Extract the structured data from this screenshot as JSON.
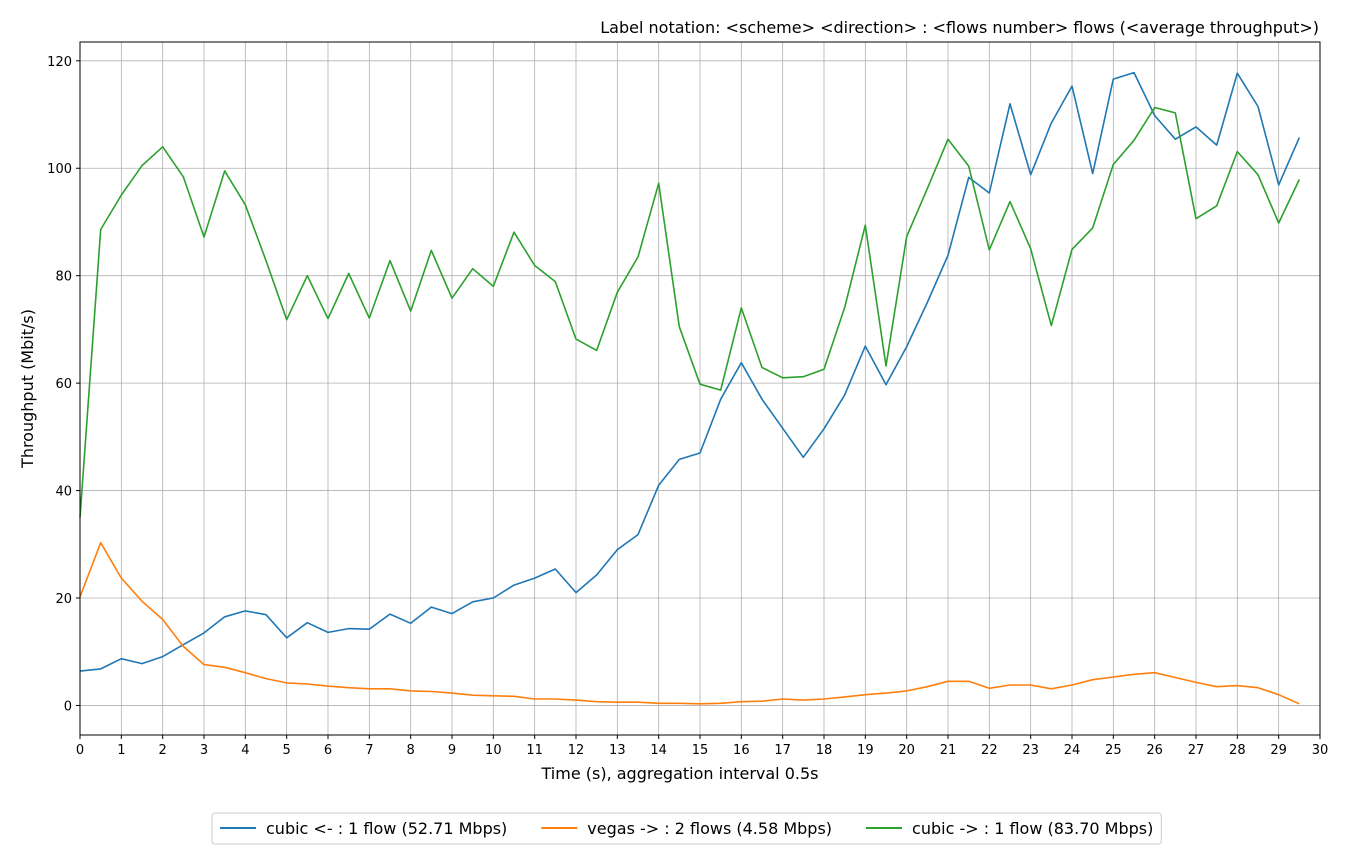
{
  "chart_data": {
    "type": "line",
    "title": "Label notation: <scheme> <direction> : <flows number> flows (<average throughput>)",
    "xlabel": "Time (s), aggregation interval 0.5s",
    "ylabel": "Throughput (Mbit/s)",
    "xlim": [
      0,
      30
    ],
    "ylim": [
      -5.5,
      123.5
    ],
    "xticks": [
      0,
      1,
      2,
      3,
      4,
      5,
      6,
      7,
      8,
      9,
      10,
      11,
      12,
      13,
      14,
      15,
      16,
      17,
      18,
      19,
      20,
      21,
      22,
      23,
      24,
      25,
      26,
      27,
      28,
      29,
      30
    ],
    "yticks": [
      0,
      20,
      40,
      60,
      80,
      100,
      120
    ],
    "grid": true,
    "legend_position": "bottom-center",
    "x": [
      0,
      0.5,
      1,
      1.5,
      2,
      2.5,
      3,
      3.5,
      4,
      4.5,
      5,
      5.5,
      6,
      6.5,
      7,
      7.5,
      8,
      8.5,
      9,
      9.5,
      10,
      10.5,
      11,
      11.5,
      12,
      12.5,
      13,
      13.5,
      14,
      14.5,
      15,
      15.5,
      16,
      16.5,
      17,
      17.5,
      18,
      18.5,
      19,
      19.5,
      20,
      20.5,
      21,
      21.5,
      22,
      22.5,
      23,
      23.5,
      24,
      24.5,
      25,
      25.5,
      26,
      26.5,
      27,
      27.5,
      28,
      28.5,
      29,
      29.5
    ],
    "series": [
      {
        "name": "cubic <- : 1 flow (52.71 Mbps)",
        "color": "#1f77b4",
        "values": [
          6.4,
          6.8,
          8.7,
          7.8,
          9.1,
          11.3,
          13.5,
          16.5,
          17.6,
          16.9,
          12.6,
          15.4,
          13.6,
          14.3,
          14.2,
          17.0,
          15.3,
          18.3,
          17.1,
          19.3,
          20.0,
          22.4,
          23.7,
          25.4,
          21.0,
          24.3,
          29.0,
          31.8,
          41.0,
          45.8,
          47.0,
          57.0,
          63.8,
          57.0,
          51.6,
          46.2,
          51.5,
          57.8,
          66.9,
          59.7,
          66.8,
          75.0,
          83.8,
          98.3,
          95.4,
          112.0,
          98.8,
          108.4,
          115.3,
          99.0,
          116.6,
          117.8,
          109.8,
          105.4,
          107.7,
          104.3,
          117.7,
          111.5,
          96.9,
          105.7
        ]
      },
      {
        "name": "vegas -> : 2 flows (4.58 Mbps)",
        "color": "#ff7f0e",
        "values": [
          20.2,
          30.3,
          23.7,
          19.4,
          16.0,
          11.0,
          7.6,
          7.1,
          6.1,
          5.0,
          4.2,
          4.0,
          3.6,
          3.3,
          3.1,
          3.1,
          2.7,
          2.6,
          2.3,
          1.9,
          1.8,
          1.7,
          1.2,
          1.2,
          1.0,
          0.7,
          0.6,
          0.6,
          0.4,
          0.4,
          0.3,
          0.4,
          0.7,
          0.8,
          1.2,
          1.0,
          1.2,
          1.6,
          2.0,
          2.3,
          2.7,
          3.5,
          4.5,
          4.5,
          3.2,
          3.8,
          3.8,
          3.1,
          3.8,
          4.8,
          5.3,
          5.8,
          6.1,
          5.2,
          4.3,
          3.5,
          3.7,
          3.3,
          2.0,
          0.3
        ]
      },
      {
        "name": "cubic -> : 1 flow (83.70 Mbps)",
        "color": "#2ca02c",
        "values": [
          35.0,
          88.6,
          95.0,
          100.5,
          104.0,
          98.4,
          87.2,
          99.5,
          93.2,
          82.8,
          71.8,
          80.0,
          72.0,
          80.4,
          72.1,
          82.8,
          73.4,
          84.7,
          75.8,
          81.3,
          78.0,
          88.1,
          81.9,
          78.9,
          68.2,
          66.1,
          76.9,
          83.5,
          97.2,
          70.5,
          59.8,
          58.7,
          74.0,
          62.9,
          61.0,
          61.2,
          62.6,
          74.1,
          89.4,
          63.2,
          87.3,
          96.2,
          105.4,
          100.4,
          84.8,
          93.8,
          85.0,
          70.7,
          84.9,
          88.9,
          100.7,
          105.2,
          111.3,
          110.3,
          90.6,
          93.0,
          103.1,
          98.8,
          89.8,
          97.9
        ]
      }
    ]
  }
}
